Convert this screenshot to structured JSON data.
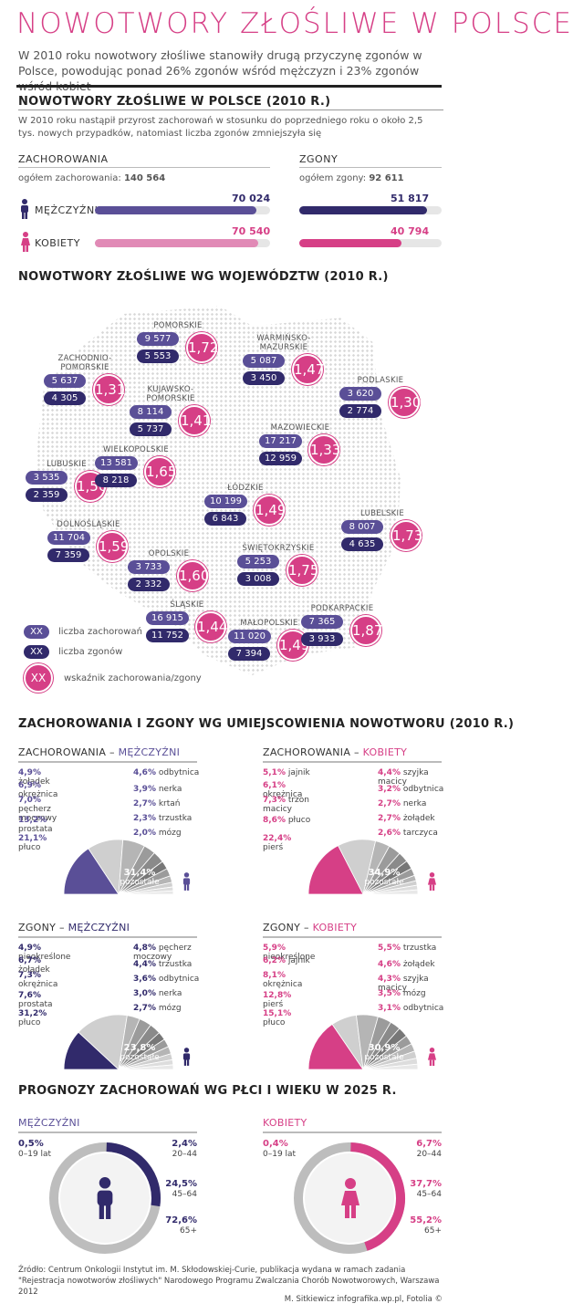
{
  "header": {
    "title": "NOWOTWORY ZŁOŚLIWE W POLSCE",
    "intro": "W 2010 roku nowotwory złośliwe stanowiły drugą przyczynę zgonów w Polsce, powodując ponad 26% zgonów wśród mężczyzn i 23% zgonów wśród kobiet"
  },
  "section1": {
    "title": "NOWOTWORY ZŁOŚLIWE W POLSCE (2010 R.)",
    "text": "W 2010 roku nastąpił przyrost zachorowań w stosunku do poprzedniego roku o około 2,5 tys. nowych przypadków, natomiast liczba zgonów zmniejszyła się",
    "cases_label": "ZACHOROWANIA",
    "cases_total_label": "ogółem zachorowania:",
    "cases_total": "140 564",
    "deaths_label": "ZGONY",
    "deaths_total_label": "ogółem zgony:",
    "deaths_total": "92 611",
    "men_label": "MĘŻCZYŹNI",
    "women_label": "KOBIETY",
    "men_cases": "70 024",
    "women_cases": "70 540",
    "men_deaths": "51 817",
    "women_deaths": "40 794",
    "colors": {
      "men": "#5a4f97",
      "men_dark": "#312a6b",
      "women": "#d63f86",
      "women_light": "#e18ab6"
    }
  },
  "section2": {
    "title": "NOWOTWORY ZŁOŚLIWE WG WOJEWÓDZTW (2010 R.)",
    "regions": [
      {
        "name": "POMORSKIE",
        "cases": "9 577",
        "deaths": "5 553",
        "ratio": "1,72"
      },
      {
        "name": "WARMIŃSKO-MAZURSKIE",
        "cases": "5 087",
        "deaths": "3 450",
        "ratio": "1,47"
      },
      {
        "name": "ZACHODNIO-POMORSKIE",
        "cases": "5 637",
        "deaths": "4 305",
        "ratio": "1,31"
      },
      {
        "name": "KUJAWSKO-POMORSKIE",
        "cases": "8 114",
        "deaths": "5 737",
        "ratio": "1,41"
      },
      {
        "name": "PODLASKIE",
        "cases": "3 620",
        "deaths": "2 774",
        "ratio": "1,30"
      },
      {
        "name": "MAZOWIECKIE",
        "cases": "17 217",
        "deaths": "12 959",
        "ratio": "1,33"
      },
      {
        "name": "LUBUSKIE",
        "cases": "3 535",
        "deaths": "2 359",
        "ratio": "1,50"
      },
      {
        "name": "WIELKOPOLSKIE",
        "cases": "13 581",
        "deaths": "8 218",
        "ratio": "1,65"
      },
      {
        "name": "ŁÓDZKIE",
        "cases": "10 199",
        "deaths": "6 843",
        "ratio": "1,49"
      },
      {
        "name": "LUBELSKIE",
        "cases": "8 007",
        "deaths": "4 635",
        "ratio": "1,73"
      },
      {
        "name": "DOLNOŚLĄSKIE",
        "cases": "11 704",
        "deaths": "7 359",
        "ratio": "1,59"
      },
      {
        "name": "OPOLSKIE",
        "cases": "3 733",
        "deaths": "2 332",
        "ratio": "1,60"
      },
      {
        "name": "ŚWIĘTOKRZYSKIE",
        "cases": "5 253",
        "deaths": "3 008",
        "ratio": "1,75"
      },
      {
        "name": "ŚLĄSKIE",
        "cases": "16 915",
        "deaths": "11 752",
        "ratio": "1,44"
      },
      {
        "name": "MAŁOPOLSKIE",
        "cases": "11 020",
        "deaths": "7 394",
        "ratio": "1,49"
      },
      {
        "name": "PODKARPACKIE",
        "cases": "7 365",
        "deaths": "3 933",
        "ratio": "1,87"
      }
    ],
    "legend": {
      "placeholder": "XX",
      "cases": "liczba zachorowań",
      "deaths": "liczba zgonów",
      "ratio": "wskaźnik zachorowania/zgony"
    }
  },
  "section3": {
    "title": "ZACHOROWANIA I ZGONY WG UMIEJSCOWIENIA NOWOTWORU (2010 R.)",
    "sub_cases": "ZACHOROWANIA",
    "sub_deaths": "ZGONY",
    "dash": "–",
    "men": "MĘŻCZYŹNI",
    "women": "KOBIETY",
    "rest_label": "pozostałe",
    "cases_men": {
      "left": [
        [
          "4,9%",
          "żołądek"
        ],
        [
          "6,9%",
          "okrężnica"
        ],
        [
          "7,0%",
          "pęcherz moczowy"
        ],
        [
          "13,2%",
          "prostata"
        ],
        [
          "21,1%",
          "płuco"
        ]
      ],
      "right": [
        [
          "4,6%",
          "odbytnica"
        ],
        [
          "3,9%",
          "nerka"
        ],
        [
          "2,7%",
          "krtań"
        ],
        [
          "2,3%",
          "trzustka"
        ],
        [
          "2,0%",
          "mózg"
        ]
      ],
      "rest": "31,4%"
    },
    "cases_women": {
      "left": [
        [
          "5,1%",
          "jajnik"
        ],
        [
          "6,1%",
          "okrężnica"
        ],
        [
          "7,3%",
          "trzon macicy"
        ],
        [
          "8,6%",
          "płuco"
        ],
        [
          "22,4%",
          "pierś"
        ]
      ],
      "right": [
        [
          "4,4%",
          "szyjka macicy"
        ],
        [
          "3,2%",
          "odbytnica"
        ],
        [
          "2,7%",
          "nerka"
        ],
        [
          "2,7%",
          "żołądek"
        ],
        [
          "2,6%",
          "tarczyca"
        ]
      ],
      "rest": "34,9%"
    },
    "deaths_men": {
      "left": [
        [
          "4,9%",
          "nieokreślone"
        ],
        [
          "6,7%",
          "żołądek"
        ],
        [
          "7,3%",
          "okrężnica"
        ],
        [
          "7,6%",
          "prostata"
        ],
        [
          "31,2%",
          "płuco"
        ]
      ],
      "right": [
        [
          "4,8%",
          "pęcherz moczowy"
        ],
        [
          "4,4%",
          "trzustka"
        ],
        [
          "3,6%",
          "odbytnica"
        ],
        [
          "3,0%",
          "nerka"
        ],
        [
          "2,7%",
          "mózg"
        ]
      ],
      "rest": "23,8%"
    },
    "deaths_women": {
      "left": [
        [
          "5,9%",
          "nieokreślone"
        ],
        [
          "6,2%",
          "jajnik"
        ],
        [
          "8,1%",
          "okrężnica"
        ],
        [
          "12,8%",
          "pierś"
        ],
        [
          "15,1%",
          "płuco"
        ]
      ],
      "right": [
        [
          "5,5%",
          "trzustka"
        ],
        [
          "4,6%",
          "żołądek"
        ],
        [
          "4,3%",
          "szyjka macicy"
        ],
        [
          "3,5%",
          "mózg"
        ],
        [
          "3,1%",
          "odbytnica"
        ]
      ],
      "rest": "30,9%"
    }
  },
  "section4": {
    "title": "PROGNOZY ZACHOROWAŃ WG PŁCI I WIEKU W 2025 R.",
    "men": "MĘŻCZYŹNI",
    "women": "KOBIETY",
    "men_groups": [
      [
        "0,5%",
        "0–19 lat"
      ],
      [
        "2,4%",
        "20–44"
      ],
      [
        "24,5%",
        "45–64"
      ],
      [
        "72,6%",
        "65+"
      ]
    ],
    "women_groups": [
      [
        "0,4%",
        "0–19 lat"
      ],
      [
        "6,7%",
        "20–44"
      ],
      [
        "37,7%",
        "45–64"
      ],
      [
        "55,2%",
        "65+"
      ]
    ]
  },
  "footer": {
    "source": "Źródło: Centrum Onkologii Instytut im. M. Skłodowskiej-Curie, publikacja wydana w ramach zadania \"Rejestracja nowotworów złośliwych\" Narodowego Programu Zwalczania Chorób Nowotworowych, Warszawa 2012",
    "credit": "M. Sitkiewicz infografika.wp.pl, Fotolia ©"
  }
}
